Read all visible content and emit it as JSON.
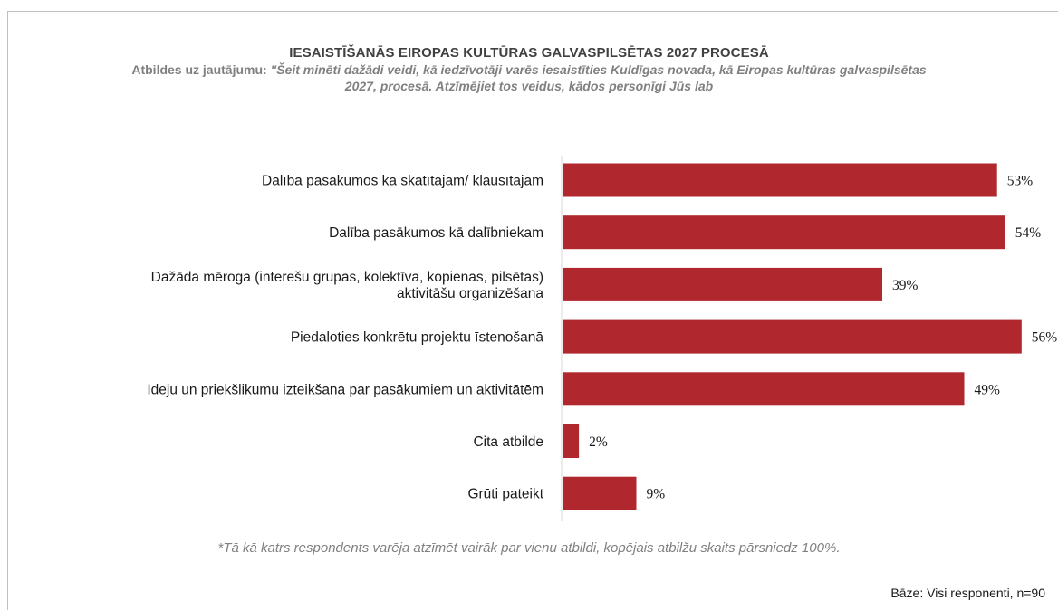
{
  "chart_data": {
    "type": "bar",
    "orientation": "horizontal",
    "title": "IESAISTĪŠANĀS EIROPAS KULTŪRAS GALVASPILSĒTAS 2027 PROCESĀ",
    "subtitle_prefix": "Atbildes uz jautājumu: ",
    "subtitle_question": "\"Šeit minēti dažādi veidi, kā iedzīvotāji varēs iesaistīties Kuldīgas novada, kā Eiropas kultūras galvaspilsētas 2027, procesā. Atzīmējiet tos veidus, kādos personīgi Jūs lab",
    "categories": [
      [
        "Dalība pasākumos kā skatītājam/ klausītājam"
      ],
      [
        "Dalība pasākumos kā dalībniekam"
      ],
      [
        "Dažāda mēroga (interešu grupas, kolektīva, kopienas, pilsētas)",
        "aktivitāšu organizēšana"
      ],
      [
        "Piedaloties konkrētu projektu īstenošanā"
      ],
      [
        "Ideju un priekšlikumu izteikšana par pasākumiem un aktivitātēm"
      ],
      [
        "Cita atbilde"
      ],
      [
        "Grūti pateikt"
      ]
    ],
    "values": [
      53,
      54,
      39,
      56,
      49,
      2,
      9
    ],
    "value_labels": [
      "53%",
      "54%",
      "39%",
      "56%",
      "49%",
      "2%",
      "9%"
    ],
    "unit": "%",
    "bar_color": "#b0272d",
    "legend": "none",
    "grid": false
  },
  "footnote": "*Tā kā katrs respondents varēja atzīmēt vairāk par vienu atbildi, kopējais atbilžu skaits pārsniedz 100%.",
  "base_note": "Bāze: Visi responenti, n=90"
}
